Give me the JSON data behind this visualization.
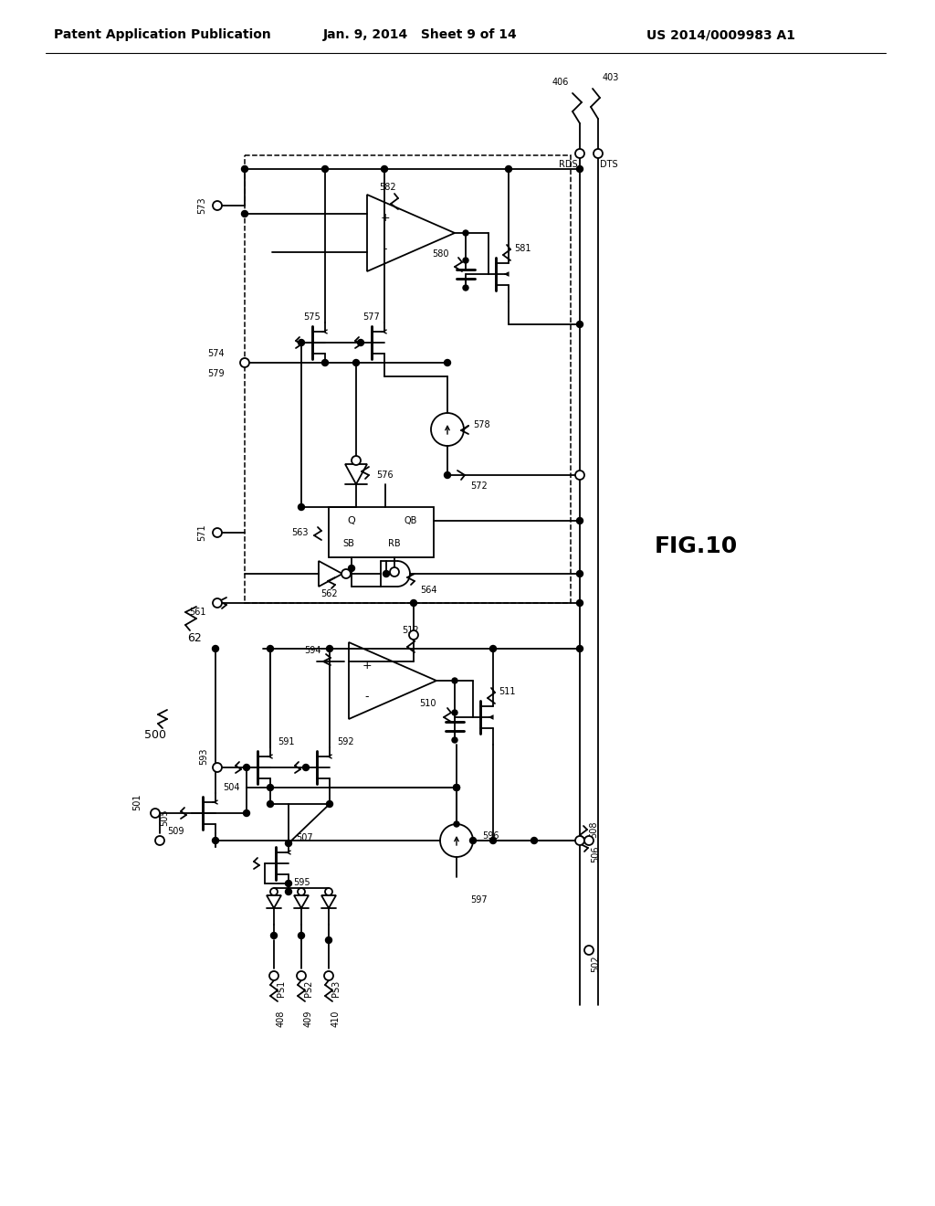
{
  "bg_color": "#ffffff",
  "line_color": "#000000",
  "header_left": "Patent Application Publication",
  "header_mid": "Jan. 9, 2014   Sheet 9 of 14",
  "header_right": "US 2014/0009983 A1",
  "fig_label": "FIG.10"
}
